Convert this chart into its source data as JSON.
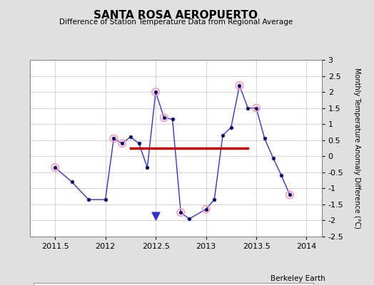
{
  "title": "SANTA ROSA AEROPUERTO",
  "subtitle": "Difference of Station Temperature Data from Regional Average",
  "ylabel": "Monthly Temperature Anomaly Difference (°C)",
  "watermark": "Berkeley Earth",
  "xlim": [
    2011.25,
    2014.15
  ],
  "ylim": [
    -2.5,
    3.0
  ],
  "xticks": [
    2011.5,
    2012.0,
    2012.5,
    2013.0,
    2013.5,
    2014.0
  ],
  "xtick_labels": [
    "2011.5",
    "2012",
    "2012.5",
    "2013",
    "2013.5",
    "2014"
  ],
  "yticks": [
    -2.5,
    -2,
    -1.5,
    -1,
    -0.5,
    0,
    0.5,
    1,
    1.5,
    2,
    2.5,
    3
  ],
  "ytick_labels": [
    "-2.5",
    "-2",
    "-1.5",
    "-1",
    "-0.5",
    "0",
    "0.5",
    "1",
    "1.5",
    "2",
    "2.5",
    "3"
  ],
  "background_color": "#e0e0e0",
  "plot_bg_color": "#ffffff",
  "line_color": "#3333cc",
  "marker_fill": "#000033",
  "marker_edge": "#3333cc",
  "qc_fail_color": "#ff99bb",
  "bias_line_color": "#cc0000",
  "x_data": [
    2011.5,
    2011.667,
    2011.833,
    2012.0,
    2012.083,
    2012.167,
    2012.25,
    2012.333,
    2012.417,
    2012.5,
    2012.583,
    2012.667,
    2012.75,
    2012.833,
    2013.0,
    2013.083,
    2013.167,
    2013.25,
    2013.333,
    2013.417,
    2013.5,
    2013.583,
    2013.667,
    2013.75,
    2013.833
  ],
  "y_data": [
    -0.35,
    -0.8,
    -1.35,
    -1.35,
    0.55,
    0.4,
    0.6,
    0.4,
    -0.35,
    2.0,
    1.2,
    1.15,
    -1.75,
    -1.95,
    -1.65,
    -1.35,
    0.65,
    0.9,
    2.2,
    1.5,
    1.5,
    0.55,
    -0.05,
    -0.6,
    -1.2
  ],
  "qc_fail_x": [
    2011.5,
    2012.083,
    2012.167,
    2012.5,
    2012.583,
    2012.75,
    2013.0,
    2013.333,
    2013.5,
    2013.833
  ],
  "qc_fail_y": [
    -0.35,
    0.55,
    0.4,
    2.0,
    1.2,
    -1.75,
    -1.65,
    2.2,
    1.5,
    -1.2
  ],
  "bias_x_start": 2012.25,
  "bias_x_end": 2013.417,
  "bias_y": 0.25,
  "time_of_obs_x": [
    2012.5
  ],
  "time_of_obs_y": [
    -1.85
  ]
}
